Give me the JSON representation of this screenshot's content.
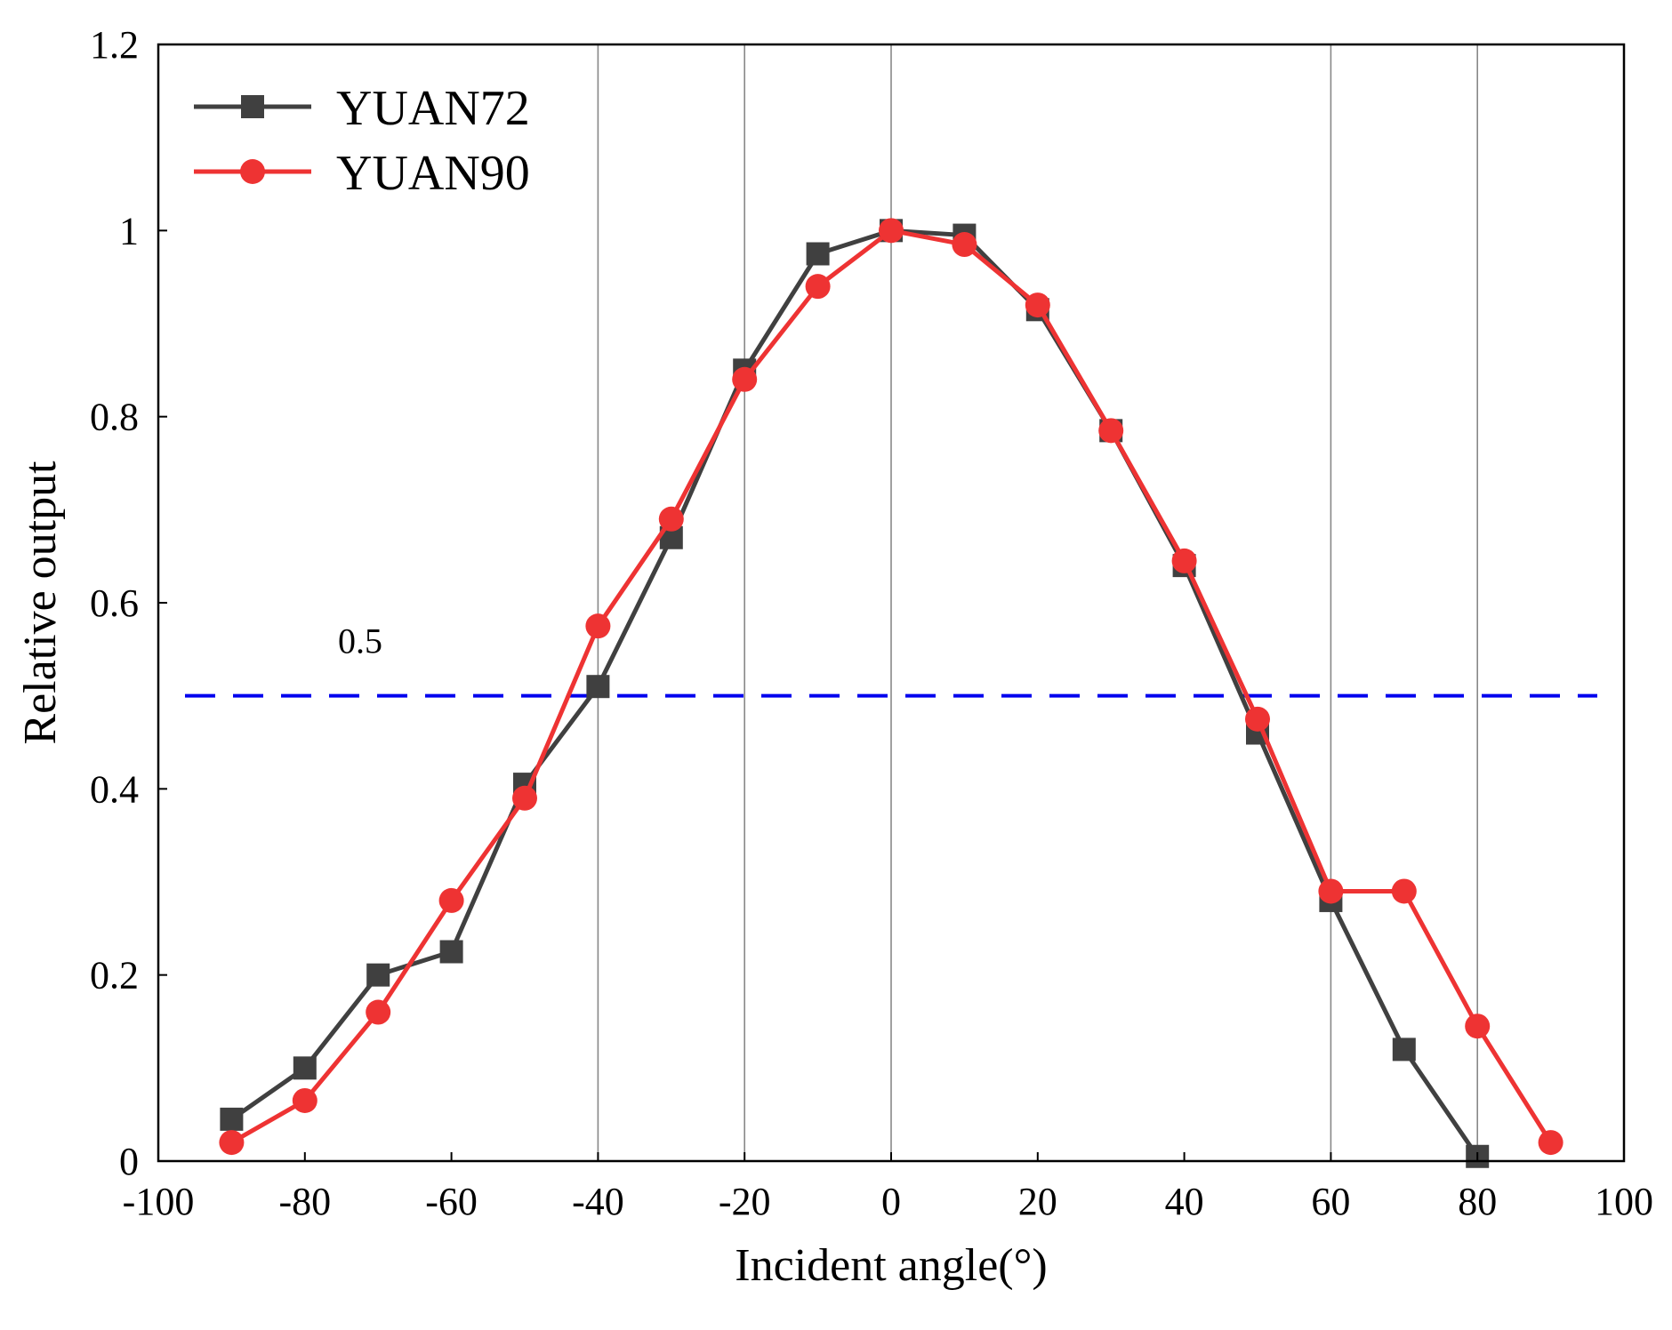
{
  "chart_data": {
    "type": "line",
    "title": "",
    "xlabel": "Incident angle(°)",
    "ylabel": "Relative output",
    "xlim": [
      -100,
      100
    ],
    "ylim": [
      0,
      1.2
    ],
    "xticks": [
      -100,
      -80,
      -60,
      -40,
      -20,
      0,
      20,
      40,
      60,
      80,
      100
    ],
    "xtick_labels": [
      "-100",
      "-80",
      "-60",
      "-40",
      "-20",
      "0",
      "20",
      "40",
      "60",
      "80",
      "100"
    ],
    "yticks": [
      0,
      0.2,
      0.4,
      0.6,
      0.8,
      1,
      1.2
    ],
    "ytick_labels": [
      "0",
      "0.2",
      "0.4",
      "0.6",
      "0.8",
      "1",
      "1.2"
    ],
    "vertical_gridlines_at": [
      -40,
      -20,
      0,
      60,
      80
    ],
    "legend_position": "top-left",
    "reference_line": {
      "y": 0.5,
      "label": "0.5",
      "color": "#0000ee",
      "style": "dashed"
    },
    "series": [
      {
        "name": "YUAN72",
        "color": "#404040",
        "marker": "square",
        "x": [
          -90,
          -80,
          -70,
          -60,
          -50,
          -40,
          -30,
          -20,
          -10,
          0,
          10,
          20,
          30,
          40,
          50,
          60,
          70,
          80
        ],
        "y": [
          0.045,
          0.1,
          0.2,
          0.225,
          0.405,
          0.51,
          0.67,
          0.85,
          0.975,
          1.0,
          0.995,
          0.915,
          0.785,
          0.64,
          0.46,
          0.28,
          0.12,
          0.005
        ]
      },
      {
        "name": "YUAN90",
        "color": "#ee3333",
        "marker": "circle",
        "x": [
          -90,
          -80,
          -70,
          -60,
          -50,
          -40,
          -30,
          -20,
          -10,
          0,
          10,
          20,
          30,
          40,
          50,
          60,
          70,
          80,
          90
        ],
        "y": [
          0.02,
          0.065,
          0.16,
          0.28,
          0.39,
          0.575,
          0.69,
          0.84,
          0.94,
          1.0,
          0.985,
          0.92,
          0.785,
          0.645,
          0.475,
          0.29,
          0.29,
          0.145,
          0.02
        ]
      }
    ]
  }
}
